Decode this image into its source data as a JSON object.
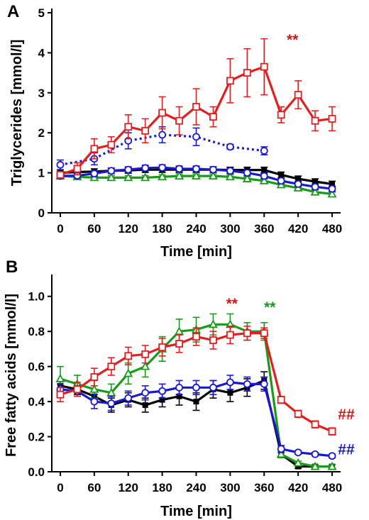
{
  "chart_data": [
    {
      "type": "line",
      "panel_label": "A",
      "xlabel": "Time [min]",
      "ylabel": "Triglycerides [mmol/l]",
      "xlim": [
        -15,
        495
      ],
      "ylim": [
        0,
        5
      ],
      "xticks": [
        0,
        60,
        120,
        180,
        240,
        300,
        360,
        420,
        480
      ],
      "yticks": [
        0,
        1,
        2,
        3,
        4,
        5
      ],
      "grid": false,
      "series": [
        {
          "color": "#000000",
          "marker": "square-filled",
          "dash": false,
          "x": [
            0,
            30,
            60,
            90,
            120,
            150,
            180,
            210,
            240,
            270,
            300,
            330,
            360,
            390,
            420,
            450,
            480
          ],
          "y": [
            1.0,
            1.02,
            1.03,
            1.05,
            1.06,
            1.08,
            1.08,
            1.08,
            1.08,
            1.08,
            1.07,
            1.07,
            1.07,
            0.95,
            0.85,
            0.78,
            0.72
          ],
          "err": [
            0.07,
            0.07,
            0.07,
            0.07,
            0.07,
            0.07,
            0.07,
            0.07,
            0.07,
            0.07,
            0.07,
            0.07,
            0.07,
            0.07,
            0.07,
            0.07,
            0.07
          ]
        },
        {
          "color": "#1a9a1a",
          "marker": "triangle-open",
          "dash": false,
          "x": [
            0,
            30,
            60,
            90,
            120,
            150,
            180,
            210,
            240,
            270,
            300,
            330,
            360,
            390,
            420,
            450,
            480
          ],
          "y": [
            0.92,
            0.9,
            0.88,
            0.88,
            0.88,
            0.88,
            0.9,
            0.92,
            0.92,
            0.92,
            0.9,
            0.85,
            0.8,
            0.7,
            0.62,
            0.52,
            0.47
          ],
          "err": [
            0.05,
            0.05,
            0.05,
            0.05,
            0.05,
            0.05,
            0.05,
            0.05,
            0.05,
            0.05,
            0.05,
            0.05,
            0.05,
            0.05,
            0.05,
            0.05,
            0.05
          ]
        },
        {
          "color": "#1a1acc",
          "marker": "circle-open",
          "dash": false,
          "x": [
            0,
            30,
            60,
            90,
            120,
            150,
            180,
            210,
            240,
            270,
            300,
            330,
            360,
            390,
            420,
            450,
            480
          ],
          "y": [
            0.92,
            0.93,
            0.98,
            1.05,
            1.08,
            1.12,
            1.13,
            1.1,
            1.1,
            1.08,
            1.05,
            1.0,
            0.92,
            0.8,
            0.72,
            0.65,
            0.6
          ],
          "err": [
            0.06,
            0.06,
            0.07,
            0.07,
            0.07,
            0.07,
            0.07,
            0.07,
            0.07,
            0.07,
            0.07,
            0.07,
            0.07,
            0.07,
            0.07,
            0.07,
            0.07
          ]
        },
        {
          "color": "#1a1acc",
          "marker": "circle-open",
          "dash": true,
          "x": [
            0,
            60,
            120,
            180,
            240,
            300,
            360
          ],
          "y": [
            1.2,
            1.35,
            1.8,
            1.95,
            1.9,
            1.65,
            1.55
          ],
          "err": [
            0.12,
            0.15,
            0.2,
            0.2,
            0.22,
            0.06,
            0.1
          ]
        },
        {
          "color": "#e02020",
          "marker": "square-open",
          "dash": false,
          "x": [
            0,
            30,
            60,
            90,
            120,
            150,
            180,
            210,
            240,
            270,
            300,
            330,
            360,
            390,
            420,
            450,
            480
          ],
          "y": [
            0.95,
            1.1,
            1.6,
            1.7,
            2.15,
            2.05,
            2.5,
            2.3,
            2.65,
            2.4,
            3.3,
            3.5,
            3.65,
            2.45,
            2.95,
            2.3,
            2.35
          ],
          "err": [
            0.08,
            0.15,
            0.25,
            0.2,
            0.3,
            0.3,
            0.4,
            0.35,
            0.45,
            0.25,
            0.55,
            0.6,
            0.7,
            0.2,
            0.35,
            0.25,
            0.3
          ]
        }
      ],
      "annotations": [
        {
          "text": "**",
          "color": "#cc1a1a",
          "x": 410,
          "y": 4.2
        }
      ]
    },
    {
      "type": "line",
      "panel_label": "B",
      "xlabel": "Time [min]",
      "ylabel": "Free fatty acids [mmol/l]",
      "xlim": [
        -15,
        495
      ],
      "ylim": [
        0,
        1.1
      ],
      "xticks": [
        0,
        60,
        120,
        180,
        240,
        300,
        360,
        420,
        480
      ],
      "yticks": [
        "0.0",
        "0.2",
        "0.4",
        "0.6",
        "0.8",
        "1.0"
      ],
      "grid": false,
      "series": [
        {
          "color": "#000000",
          "marker": "square-filled",
          "dash": false,
          "x": [
            0,
            30,
            60,
            90,
            120,
            150,
            180,
            210,
            240,
            270,
            300,
            330,
            360,
            390,
            420,
            450,
            480
          ],
          "y": [
            0.49,
            0.47,
            0.43,
            0.38,
            0.41,
            0.38,
            0.41,
            0.43,
            0.4,
            0.47,
            0.45,
            0.48,
            0.52,
            0.1,
            0.03,
            0.03,
            0.03
          ],
          "err": [
            0.03,
            0.03,
            0.03,
            0.04,
            0.04,
            0.04,
            0.04,
            0.05,
            0.05,
            0.05,
            0.05,
            0.05,
            0.05,
            0.02,
            0.01,
            0.01,
            0.01
          ]
        },
        {
          "color": "#1a9a1a",
          "marker": "triangle-open",
          "dash": false,
          "x": [
            0,
            30,
            60,
            90,
            120,
            150,
            180,
            210,
            240,
            270,
            300,
            330,
            360,
            390,
            420,
            450,
            480
          ],
          "y": [
            0.53,
            0.5,
            0.47,
            0.45,
            0.56,
            0.6,
            0.7,
            0.8,
            0.81,
            0.84,
            0.84,
            0.8,
            0.8,
            0.1,
            0.05,
            0.03,
            0.03
          ],
          "err": [
            0.07,
            0.05,
            0.05,
            0.05,
            0.06,
            0.06,
            0.07,
            0.07,
            0.07,
            0.06,
            0.06,
            0.05,
            0.05,
            0.02,
            0.01,
            0.01,
            0.01
          ]
        },
        {
          "color": "#1a1acc",
          "marker": "circle-open",
          "dash": false,
          "x": [
            0,
            30,
            60,
            90,
            120,
            150,
            180,
            210,
            240,
            270,
            300,
            330,
            360,
            390,
            420,
            450,
            480
          ],
          "y": [
            0.47,
            0.46,
            0.4,
            0.39,
            0.42,
            0.45,
            0.46,
            0.48,
            0.48,
            0.48,
            0.51,
            0.5,
            0.5,
            0.13,
            0.11,
            0.1,
            0.09
          ],
          "err": [
            0.03,
            0.03,
            0.04,
            0.04,
            0.04,
            0.04,
            0.04,
            0.04,
            0.04,
            0.04,
            0.04,
            0.04,
            0.04,
            0.02,
            0.01,
            0.01,
            0.01
          ]
        },
        {
          "color": "#e02020",
          "marker": "square-open",
          "dash": false,
          "x": [
            0,
            30,
            60,
            90,
            120,
            150,
            180,
            210,
            240,
            270,
            300,
            330,
            360,
            390,
            420,
            450,
            480
          ],
          "y": [
            0.44,
            0.47,
            0.54,
            0.6,
            0.66,
            0.67,
            0.71,
            0.73,
            0.77,
            0.75,
            0.78,
            0.79,
            0.79,
            0.41,
            0.33,
            0.27,
            0.23
          ],
          "err": [
            0.04,
            0.04,
            0.05,
            0.05,
            0.05,
            0.05,
            0.05,
            0.05,
            0.05,
            0.05,
            0.05,
            0.04,
            0.03,
            0.02,
            0.02,
            0.02,
            0.02
          ]
        }
      ],
      "annotations": [
        {
          "text": "**",
          "color": "#cc1a1a",
          "x": 303,
          "y": 0.93
        },
        {
          "text": "**",
          "color": "#1a9a1a",
          "x": 370,
          "y": 0.91
        },
        {
          "text": "##",
          "color": "#cc1a1a",
          "x": 505,
          "y": 0.3
        },
        {
          "text": "##",
          "color": "#1a1acc",
          "x": 505,
          "y": 0.1
        }
      ]
    }
  ]
}
